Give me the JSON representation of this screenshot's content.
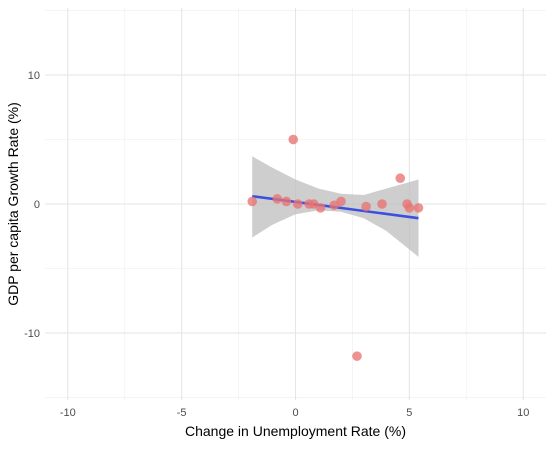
{
  "chart_data": {
    "type": "scatter",
    "title": "",
    "xlabel": "Change in Unemployment Rate (%)",
    "ylabel": "GDP per capita Growth Rate (%)",
    "xlim": [
      -11,
      11
    ],
    "ylim": [
      -15.2,
      15.2
    ],
    "x_ticks": [
      -10,
      -5,
      0,
      5,
      10
    ],
    "x_tick_labels": [
      "-10",
      "-5",
      "0",
      "5",
      "10"
    ],
    "y_ticks": [
      -10,
      0,
      10
    ],
    "y_tick_labels": [
      "-10",
      "0",
      "10"
    ],
    "grid": true,
    "legend": "none",
    "colors": {
      "points": "#e8737280",
      "point_fill": "#e87372",
      "fit_line": "#3b4fe0",
      "confidence_band": "#bdbdbd",
      "grid_major": "#e6e6e6",
      "grid_minor": "#f2f2f2"
    },
    "points": [
      {
        "x": -1.9,
        "y": 0.2
      },
      {
        "x": -0.8,
        "y": 0.4
      },
      {
        "x": -0.4,
        "y": 0.2
      },
      {
        "x": -0.1,
        "y": 5.0
      },
      {
        "x": 0.1,
        "y": 0.0
      },
      {
        "x": 0.6,
        "y": 0.0
      },
      {
        "x": 0.8,
        "y": 0.0
      },
      {
        "x": 1.1,
        "y": -0.3
      },
      {
        "x": 1.7,
        "y": -0.1
      },
      {
        "x": 2.0,
        "y": 0.2
      },
      {
        "x": 2.7,
        "y": -11.8
      },
      {
        "x": 3.1,
        "y": -0.2
      },
      {
        "x": 3.8,
        "y": 0.0
      },
      {
        "x": 4.6,
        "y": 2.0
      },
      {
        "x": 4.9,
        "y": 0.0
      },
      {
        "x": 5.0,
        "y": -0.3
      },
      {
        "x": 5.4,
        "y": -0.3
      }
    ],
    "fit": {
      "method": "linear",
      "x_range": [
        -1.9,
        5.4
      ],
      "y_start": 0.6,
      "y_end": -1.1
    },
    "confidence_band": [
      {
        "x": -1.9,
        "lower": -2.6,
        "upper": 3.7
      },
      {
        "x": -1.0,
        "lower": -1.6,
        "upper": 2.8
      },
      {
        "x": 0.0,
        "lower": -0.8,
        "upper": 1.9
      },
      {
        "x": 1.0,
        "lower": -0.5,
        "upper": 1.2
      },
      {
        "x": 2.0,
        "lower": -0.6,
        "upper": 0.8
      },
      {
        "x": 3.0,
        "lower": -1.1,
        "upper": 0.7
      },
      {
        "x": 4.0,
        "lower": -2.1,
        "upper": 1.2
      },
      {
        "x": 5.4,
        "lower": -4.1,
        "upper": 1.9
      }
    ]
  }
}
